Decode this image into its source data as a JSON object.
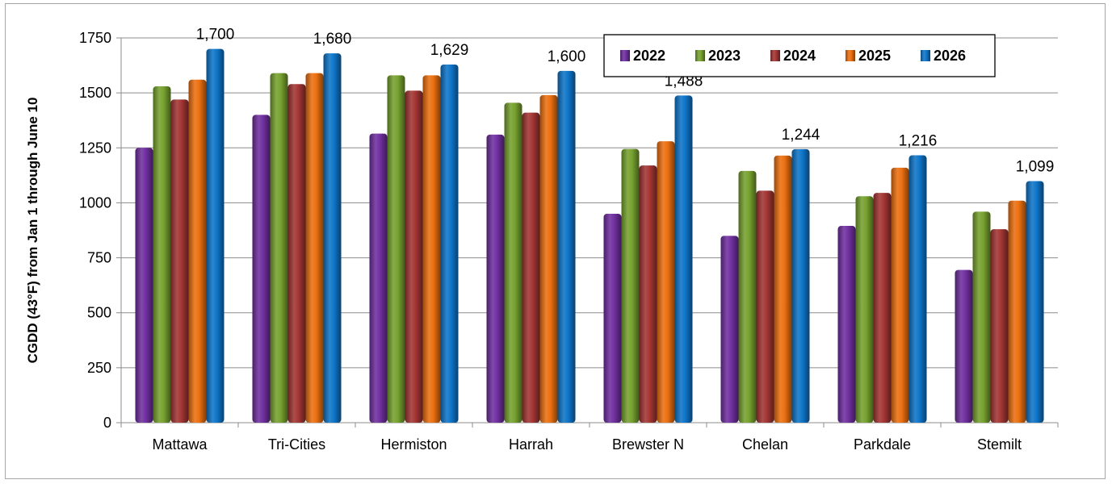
{
  "chart_data": {
    "type": "bar",
    "title": "",
    "xlabel": "",
    "ylabel": "CGDD (43°F) from Jan 1 through June 10",
    "ylim": [
      0,
      1750
    ],
    "yticks": [
      0,
      250,
      500,
      750,
      1000,
      1250,
      1500,
      1750
    ],
    "grid": true,
    "legend_position": "top-right",
    "categories": [
      "Mattawa",
      "Tri-Cities",
      "Hermiston",
      "Harrah",
      "Brewster N",
      "Chelan",
      "Parkdale",
      "Stemilt"
    ],
    "series": [
      {
        "name": "2022",
        "color": "#7030a0",
        "values": [
          1250,
          1400,
          1315,
          1310,
          950,
          850,
          895,
          695
        ]
      },
      {
        "name": "2023",
        "color": "#77a22f",
        "values": [
          1530,
          1590,
          1580,
          1455,
          1245,
          1145,
          1030,
          960
        ]
      },
      {
        "name": "2024",
        "color": "#a33634",
        "values": [
          1470,
          1540,
          1510,
          1410,
          1170,
          1055,
          1045,
          880
        ]
      },
      {
        "name": "2025",
        "color": "#ec7011",
        "values": [
          1560,
          1590,
          1580,
          1490,
          1280,
          1215,
          1160,
          1010
        ]
      },
      {
        "name": "2026",
        "color": "#0f75c9",
        "values": [
          1700,
          1680,
          1629,
          1600,
          1488,
          1244,
          1216,
          1099
        ]
      }
    ],
    "data_labels": [
      "1,700",
      "1,680",
      "1,629",
      "1,600",
      "1,488",
      "1,244",
      "1,216",
      "1,099"
    ]
  }
}
